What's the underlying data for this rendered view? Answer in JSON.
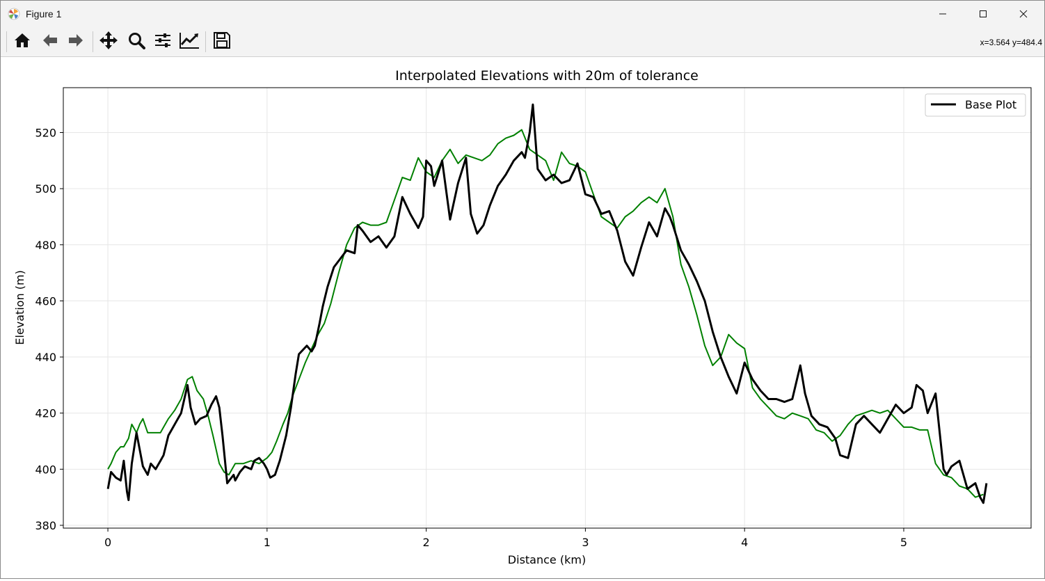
{
  "window": {
    "title": "Figure 1"
  },
  "toolbar": {
    "buttons": [
      "home-icon",
      "back-icon",
      "forward-icon",
      "pan-icon",
      "zoom-icon",
      "configure-subplots-icon",
      "edit-axis-icon",
      "save-icon"
    ],
    "coord_readout": "x=3.564 y=484.4"
  },
  "colors": {
    "base": "#000000",
    "interp": "#008000",
    "grid": "#e6e6e6"
  },
  "chart_data": {
    "type": "line",
    "title": "Interpolated Elevations with 20m of tolerance",
    "xlabel": "Distance (km)",
    "ylabel": "Elevation (m)",
    "xlim": [
      -0.28,
      5.8
    ],
    "ylim": [
      379,
      536
    ],
    "xticks": [
      0,
      1,
      2,
      3,
      4,
      5
    ],
    "yticks": [
      380,
      400,
      420,
      440,
      460,
      480,
      500,
      520
    ],
    "grid": true,
    "legend": {
      "position": "top-right",
      "entries": [
        "Base Plot"
      ]
    },
    "series": [
      {
        "name": "Base Plot",
        "color": "#000000",
        "x": [
          0.0,
          0.02,
          0.05,
          0.08,
          0.1,
          0.12,
          0.13,
          0.15,
          0.18,
          0.2,
          0.22,
          0.25,
          0.27,
          0.3,
          0.33,
          0.35,
          0.38,
          0.4,
          0.43,
          0.46,
          0.5,
          0.52,
          0.55,
          0.58,
          0.62,
          0.65,
          0.68,
          0.7,
          0.72,
          0.75,
          0.79,
          0.8,
          0.83,
          0.86,
          0.9,
          0.92,
          0.95,
          0.98,
          1.0,
          1.02,
          1.05,
          1.08,
          1.12,
          1.15,
          1.18,
          1.2,
          1.25,
          1.28,
          1.3,
          1.33,
          1.35,
          1.38,
          1.42,
          1.46,
          1.5,
          1.55,
          1.57,
          1.6,
          1.65,
          1.7,
          1.75,
          1.8,
          1.85,
          1.9,
          1.95,
          1.98,
          2.0,
          2.03,
          2.05,
          2.1,
          2.15,
          2.2,
          2.25,
          2.28,
          2.32,
          2.36,
          2.4,
          2.45,
          2.5,
          2.55,
          2.6,
          2.62,
          2.65,
          2.67,
          2.7,
          2.75,
          2.8,
          2.85,
          2.9,
          2.95,
          3.0,
          3.05,
          3.1,
          3.15,
          3.2,
          3.25,
          3.3,
          3.35,
          3.4,
          3.45,
          3.5,
          3.53,
          3.55,
          3.6,
          3.65,
          3.7,
          3.75,
          3.8,
          3.85,
          3.9,
          3.95,
          4.0,
          4.05,
          4.1,
          4.15,
          4.2,
          4.25,
          4.3,
          4.35,
          4.38,
          4.42,
          4.47,
          4.52,
          4.57,
          4.6,
          4.65,
          4.7,
          4.75,
          4.8,
          4.85,
          4.9,
          4.95,
          5.0,
          5.05,
          5.08,
          5.12,
          5.15,
          5.2,
          5.25,
          5.27,
          5.3,
          5.35,
          5.4,
          5.45,
          5.48,
          5.5,
          5.52
        ],
        "y": [
          393,
          399,
          397,
          396,
          403,
          392,
          389,
          402,
          413,
          407,
          401,
          398,
          402,
          400,
          403,
          405,
          412,
          414,
          417,
          420,
          430,
          422,
          416,
          418,
          419,
          423,
          426,
          422,
          412,
          395,
          398,
          396,
          399,
          401,
          400,
          403,
          404,
          402,
          400,
          397,
          398,
          403,
          412,
          422,
          434,
          441,
          444,
          442,
          444,
          452,
          458,
          465,
          472,
          475,
          478,
          477,
          487,
          485,
          481,
          483,
          479,
          483,
          497,
          491,
          486,
          490,
          510,
          508,
          501,
          510,
          489,
          502,
          511,
          491,
          484,
          487,
          494,
          501,
          505,
          510,
          513,
          511,
          520,
          530,
          507,
          503,
          505,
          502,
          503,
          509,
          498,
          497,
          491,
          492,
          485,
          474,
          469,
          479,
          488,
          483,
          493,
          490,
          487,
          478,
          473,
          467,
          460,
          449,
          440,
          433,
          427,
          438,
          432,
          428,
          425,
          425,
          424,
          425,
          437,
          427,
          419,
          416,
          415,
          411,
          405,
          404,
          416,
          419,
          416,
          413,
          418,
          423,
          420,
          422,
          430,
          428,
          420,
          427,
          400,
          398,
          401,
          403,
          393,
          395,
          390,
          388,
          395
        ]
      },
      {
        "color": "#008000",
        "x": [
          0.0,
          0.02,
          0.05,
          0.08,
          0.1,
          0.13,
          0.15,
          0.18,
          0.2,
          0.22,
          0.25,
          0.3,
          0.33,
          0.35,
          0.38,
          0.42,
          0.46,
          0.5,
          0.53,
          0.56,
          0.6,
          0.63,
          0.66,
          0.7,
          0.73,
          0.76,
          0.8,
          0.85,
          0.9,
          0.95,
          1.0,
          1.03,
          1.06,
          1.1,
          1.13,
          1.16,
          1.2,
          1.24,
          1.28,
          1.32,
          1.36,
          1.4,
          1.45,
          1.5,
          1.55,
          1.6,
          1.65,
          1.7,
          1.75,
          1.8,
          1.85,
          1.9,
          1.95,
          2.0,
          2.05,
          2.1,
          2.15,
          2.2,
          2.25,
          2.3,
          2.35,
          2.4,
          2.45,
          2.5,
          2.55,
          2.6,
          2.65,
          2.7,
          2.75,
          2.8,
          2.85,
          2.9,
          2.95,
          3.0,
          3.05,
          3.1,
          3.15,
          3.2,
          3.25,
          3.3,
          3.35,
          3.4,
          3.45,
          3.5,
          3.55,
          3.6,
          3.65,
          3.7,
          3.75,
          3.8,
          3.85,
          3.9,
          3.95,
          4.0,
          4.05,
          4.1,
          4.15,
          4.2,
          4.25,
          4.3,
          4.35,
          4.4,
          4.45,
          4.5,
          4.55,
          4.6,
          4.65,
          4.7,
          4.75,
          4.8,
          4.85,
          4.9,
          4.95,
          5.0,
          5.05,
          5.1,
          5.15,
          5.2,
          5.25,
          5.3,
          5.35,
          5.4,
          5.45,
          5.5
        ],
        "y": [
          400,
          402,
          406,
          408,
          408,
          411,
          416,
          413,
          416,
          418,
          413,
          413,
          413,
          415,
          418,
          421,
          425,
          432,
          433,
          428,
          425,
          419,
          412,
          402,
          399,
          398,
          402,
          402,
          403,
          402,
          404,
          406,
          410,
          416,
          420,
          426,
          432,
          438,
          443,
          448,
          452,
          459,
          470,
          480,
          486,
          488,
          487,
          487,
          488,
          496,
          504,
          503,
          511,
          506,
          504,
          510,
          514,
          509,
          512,
          511,
          510,
          512,
          516,
          518,
          519,
          521,
          514,
          512,
          510,
          503,
          513,
          509,
          508,
          506,
          498,
          490,
          488,
          486,
          490,
          492,
          495,
          497,
          495,
          500,
          490,
          473,
          465,
          455,
          444,
          437,
          440,
          448,
          445,
          443,
          429,
          425,
          422,
          419,
          418,
          420,
          419,
          418,
          414,
          413,
          410,
          412,
          416,
          419,
          420,
          421,
          420,
          421,
          418,
          415,
          415,
          414,
          414,
          402,
          398,
          397,
          394,
          393,
          390,
          391
        ]
      }
    ]
  }
}
